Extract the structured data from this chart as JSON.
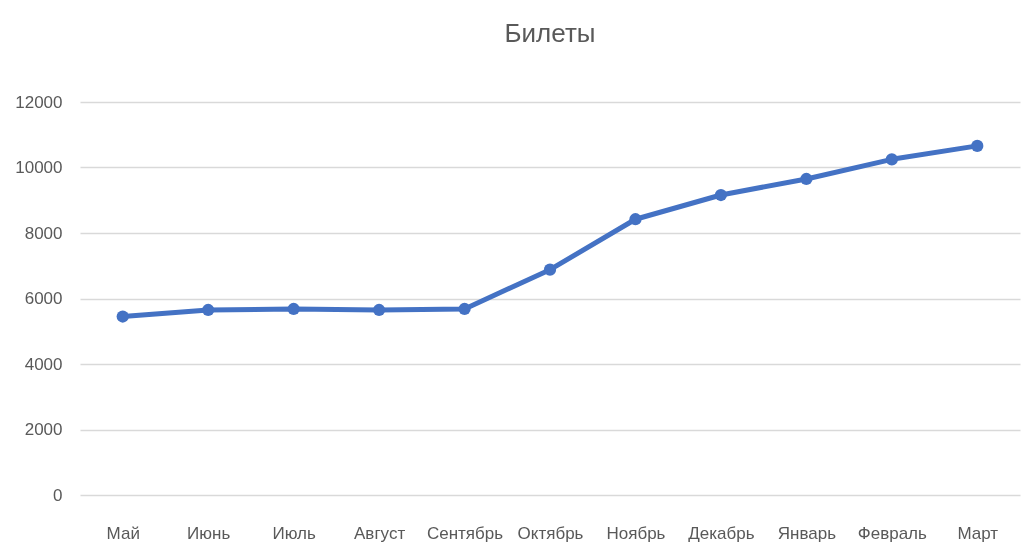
{
  "chart_data": {
    "type": "line",
    "title": "Билеты",
    "categories": [
      "Май",
      "Июнь",
      "Июль",
      "Август",
      "Сентябрь",
      "Октябрь",
      "Ноябрь",
      "Декабрь",
      "Январь",
      "Февраль",
      "Март"
    ],
    "values": [
      5450,
      5650,
      5680,
      5650,
      5680,
      6880,
      8420,
      9160,
      9650,
      10250,
      10660
    ],
    "color": "#4472c4",
    "marker": "circle",
    "ylim": [
      0,
      12000
    ],
    "yticks": [
      0,
      2000,
      4000,
      6000,
      8000,
      10000,
      12000
    ],
    "grid": "y"
  }
}
